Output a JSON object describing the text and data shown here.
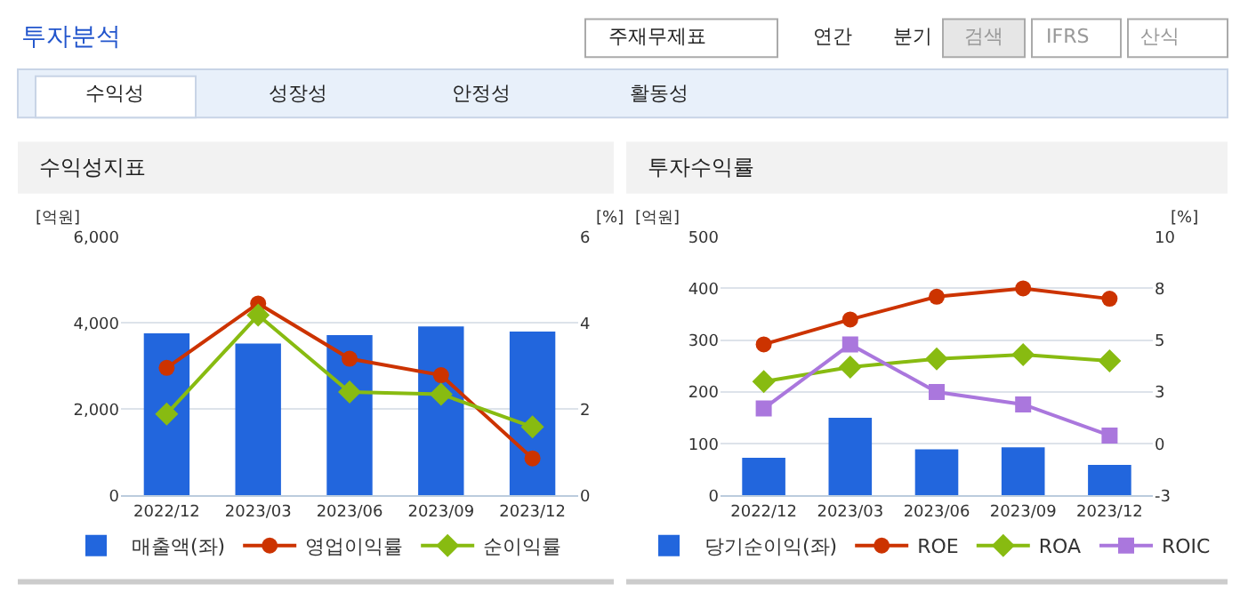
{
  "chart_data": [
    {
      "type": "other",
      "title": "투자분석",
      "annotations": [
        "주재무제표",
        "연간",
        "분기",
        "검색",
        "IFRS",
        "산식",
        "수익성",
        "성장성",
        "안정성",
        "활동성"
      ]
    },
    {
      "type": "bar",
      "title": "수익성지표",
      "categories": [
        "2022/12",
        "2023/03",
        "2023/06",
        "2023/09",
        "2023/12"
      ],
      "ylabel": "[억원]",
      "y2label": "[%]",
      "ylim": [
        0,
        6000
      ],
      "yticks": [
        {
          "value": 0,
          "label": "0"
        },
        {
          "value": 2000,
          "label": "2,000"
        },
        {
          "value": 4000,
          "label": "4,000"
        },
        {
          "value": 6000,
          "label": "6,000"
        }
      ],
      "y2lim": [
        0,
        6
      ],
      "y2ticks": [
        0,
        2,
        4,
        6
      ],
      "grid": "y",
      "legend": "bottom",
      "series": [
        {
          "name": "매출액(좌)",
          "type": "bar",
          "color": "#2266dd",
          "values": [
            3760,
            3520,
            3720,
            3920,
            3800
          ]
        },
        {
          "name": "영업이익률",
          "type": "line",
          "axis": "y2",
          "marker": "circle",
          "color": "#cc3300",
          "values": [
            2.96,
            4.45,
            3.17,
            2.79,
            0.86
          ]
        },
        {
          "name": "순이익률",
          "type": "line",
          "axis": "y2",
          "marker": "diamond",
          "color": "#88bb11",
          "values": [
            1.89,
            4.18,
            2.4,
            2.35,
            1.59
          ]
        }
      ]
    },
    {
      "type": "bar",
      "title": "투자수익률",
      "categories": [
        "2022/12",
        "2023/03",
        "2023/06",
        "2023/09",
        "2023/12"
      ],
      "ylabel": "[억원]",
      "y2label": "[%]",
      "ylim": [
        0,
        500
      ],
      "yticks": [
        0,
        100,
        200,
        300,
        400,
        500
      ],
      "y2lim": [
        -2.5,
        10
      ],
      "y2ticks": [
        {
          "value": -2.5,
          "label": "-3"
        },
        0,
        {
          "value": 2.5,
          "label": "3"
        },
        5,
        {
          "value": 7.5,
          "label": "8"
        },
        10
      ],
      "grid": "y",
      "legend": "bottom",
      "series": [
        {
          "name": "당기순이익(좌)",
          "type": "bar",
          "color": "#2266dd",
          "values": [
            73,
            150,
            89,
            93,
            59
          ]
        },
        {
          "name": "ROE",
          "type": "line",
          "axis": "y2",
          "marker": "circle",
          "color": "#cc3300",
          "values": [
            4.8,
            6,
            7.1,
            7.5,
            7
          ]
        },
        {
          "name": "ROA",
          "type": "line",
          "axis": "y2",
          "marker": "diamond",
          "color": "#88bb11",
          "values": [
            3,
            3.7,
            4.1,
            4.3,
            4
          ]
        },
        {
          "name": "ROIC",
          "type": "line",
          "axis": "y2",
          "marker": "square",
          "color": "#aa77dd",
          "values": [
            1.7,
            4.8,
            2.5,
            1.9,
            0.4
          ]
        }
      ]
    }
  ]
}
